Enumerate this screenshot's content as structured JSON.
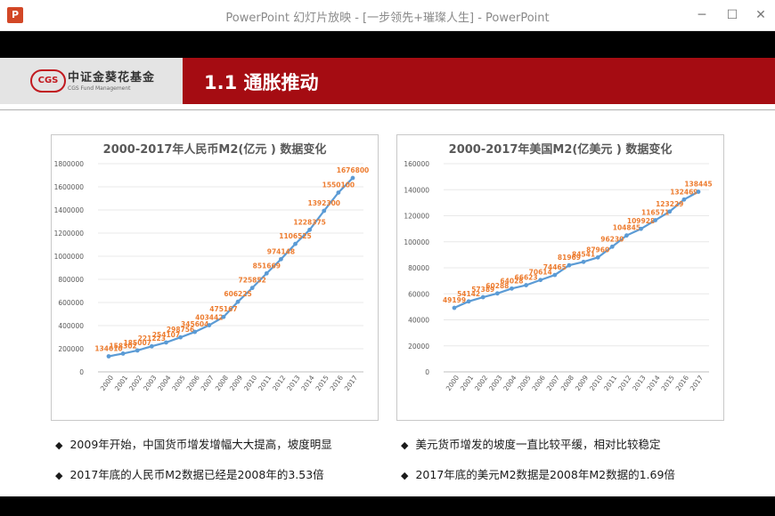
{
  "window": {
    "app_icon": "P",
    "title": "PowerPoint 幻灯片放映 - [一步领先+璀璨人生] - PowerPoint",
    "minimize_icon": "─",
    "maximize_icon": "☐",
    "close_icon": "✕"
  },
  "slide": {
    "logo_mark": "CGS",
    "logo_name": "中证金葵花基金",
    "logo_sub": "CGS Fund Management",
    "title": "1.1 通胀推动"
  },
  "bullets": [
    {
      "marker": "◆",
      "text": "2009年开始，中国货币增发增幅大大提高，坡度明显"
    },
    {
      "marker": "◆",
      "text": "2017年底的人民币M2数据已经是2008年的3.53倍"
    },
    {
      "marker": "◆",
      "text": "美元货币增发的坡度一直比较平缓，相对比较稳定"
    },
    {
      "marker": "◆",
      "text": "2017年底的美元M2数据是2008年M2数据的1.69倍"
    }
  ],
  "colors": {
    "line": "#5b9bd5",
    "label": "#ed7d31",
    "title_bar": "#a50c12"
  },
  "chart_data": [
    {
      "type": "line",
      "title": "2000-2017年人民币M2(亿元 ) 数据变化",
      "x": [
        "2000",
        "2001",
        "2002",
        "2003",
        "2004",
        "2005",
        "2006",
        "2007",
        "2008",
        "2009",
        "2010",
        "2011",
        "2012",
        "2013",
        "2014",
        "2015",
        "2016",
        "2017"
      ],
      "values": [
        134610,
        158302,
        185007,
        221223,
        254107,
        298756,
        345604,
        403442,
        475167,
        606225,
        725852,
        851669,
        974148,
        1106525,
        1228375,
        1392300,
        1550100,
        1676800
      ],
      "yticks": [
        0,
        200000,
        400000,
        600000,
        800000,
        1000000,
        1200000,
        1400000,
        1600000,
        1800000
      ],
      "ylim": [
        0,
        1800000
      ]
    },
    {
      "type": "line",
      "title": "2000-2017年美国M2(亿美元 ) 数据变化",
      "x": [
        "2000",
        "2001",
        "2002",
        "2003",
        "2004",
        "2005",
        "2006",
        "2007",
        "2008",
        "2009",
        "2010",
        "2011",
        "2012",
        "2013",
        "2014",
        "2015",
        "2016",
        "2017"
      ],
      "values": [
        49199,
        54142,
        57389,
        60288,
        64028,
        66623,
        70614,
        74465,
        81969,
        84541,
        87960,
        96230,
        104845,
        109928,
        116571,
        123229,
        132469,
        138445
      ],
      "yticks": [
        0,
        20000,
        40000,
        60000,
        80000,
        100000,
        120000,
        140000,
        160000
      ],
      "ylim": [
        0,
        160000
      ]
    }
  ]
}
